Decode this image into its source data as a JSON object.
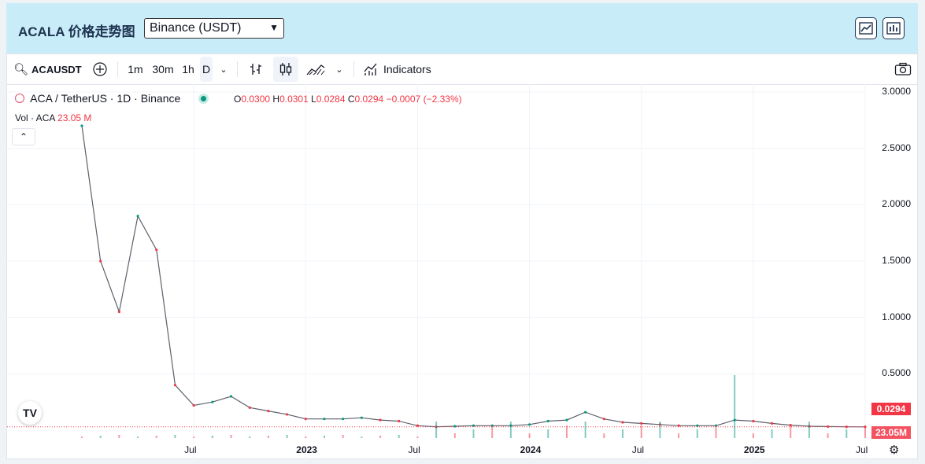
{
  "header": {
    "title": "ACALA 价格走势图",
    "exchange_select": "Binance (USDT)"
  },
  "toolbar": {
    "symbol": "ACAUSDT",
    "intervals": [
      "1m",
      "30m",
      "1h",
      "D"
    ],
    "indicators_label": "Indicators"
  },
  "legend": {
    "title": "ACA / TetherUS · 1D · Binance",
    "o_key": "O",
    "o": "0.0300",
    "h_key": "H",
    "h": "0.0301",
    "l_key": "L",
    "l": "0.0284",
    "c_key": "C",
    "c": "0.0294",
    "change": "−0.0007 (−2.33%)",
    "vol_label": "Vol · ACA",
    "vol_value": "23.05 M"
  },
  "colors": {
    "up": "#089981",
    "down": "#f23645",
    "accent": "#2962ff"
  },
  "price_badge": "0.0294",
  "volume_badge": "23.05M",
  "chart_data": {
    "type": "line",
    "title": "ACA / TetherUS · 1D · Binance",
    "ylim": [
      0,
      3.0
    ],
    "y_ticks": [
      "3.0000",
      "2.5000",
      "2.0000",
      "1.5000",
      "1.0000",
      "0.5000"
    ],
    "x_ticks": [
      "Jul",
      "2023",
      "Jul",
      "2024",
      "Jul",
      "2025",
      "Jul"
    ],
    "x": [
      "2022-01",
      "2022-02",
      "2022-03",
      "2022-04",
      "2022-05",
      "2022-06",
      "2022-07",
      "2022-08",
      "2022-09",
      "2022-10",
      "2022-11",
      "2022-12",
      "2023-01",
      "2023-02",
      "2023-03",
      "2023-04",
      "2023-05",
      "2023-06",
      "2023-07",
      "2023-08",
      "2023-09",
      "2023-10",
      "2023-11",
      "2023-12",
      "2024-01",
      "2024-02",
      "2024-03",
      "2024-04",
      "2024-05",
      "2024-06",
      "2024-07",
      "2024-08",
      "2024-09",
      "2024-10",
      "2024-11",
      "2024-12",
      "2025-01",
      "2025-02",
      "2025-03",
      "2025-04",
      "2025-05",
      "2025-06",
      "2025-07"
    ],
    "series": [
      {
        "values": [
          2.7,
          1.5,
          1.05,
          1.9,
          1.6,
          0.4,
          0.22,
          0.25,
          0.3,
          0.2,
          0.17,
          0.14,
          0.1,
          0.1,
          0.1,
          0.11,
          0.09,
          0.08,
          0.04,
          0.03,
          0.035,
          0.04,
          0.04,
          0.04,
          0.05,
          0.08,
          0.09,
          0.16,
          0.1,
          0.07,
          0.06,
          0.05,
          0.04,
          0.04,
          0.04,
          0.09,
          0.08,
          0.06,
          0.045,
          0.035,
          0.032,
          0.03,
          0.0294
        ]
      }
    ],
    "grid": true,
    "legend": "top-left"
  }
}
